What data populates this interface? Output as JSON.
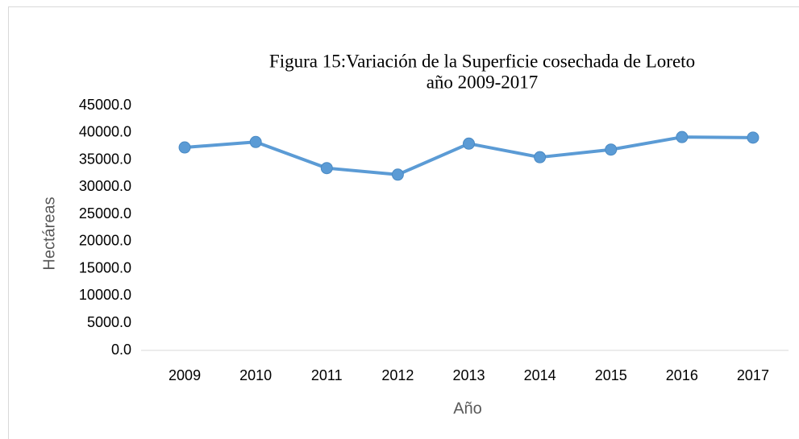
{
  "chart_data": {
    "type": "line",
    "title": "Figura 15:Variación de la Superficie cosechada de Loreto",
    "subtitle": "año 2009-2017",
    "x_label": "Año",
    "y_label": "Hectáreas",
    "categories": [
      "2009",
      "2010",
      "2011",
      "2012",
      "2013",
      "2014",
      "2015",
      "2016",
      "2017"
    ],
    "series": [
      {
        "name": "Superficie cosechada",
        "color": "#5b9bd5",
        "values": [
          37300,
          38300,
          33500,
          32300,
          38000,
          35500,
          36900,
          39200,
          39100
        ]
      }
    ],
    "ylim": [
      0,
      45000
    ],
    "yticks": [
      {
        "value": 0,
        "label": "0.0"
      },
      {
        "value": 5000,
        "label": "5000.0"
      },
      {
        "value": 10000,
        "label": "10000.0"
      },
      {
        "value": 15000,
        "label": "15000.0"
      },
      {
        "value": 20000,
        "label": "20000.0"
      },
      {
        "value": 25000,
        "label": "25000.0"
      },
      {
        "value": 30000,
        "label": "30000.0"
      },
      {
        "value": 35000,
        "label": "35000.0"
      },
      {
        "value": 40000,
        "label": "40000.0"
      },
      {
        "value": 45000,
        "label": "45000.0"
      }
    ],
    "grid": false
  }
}
